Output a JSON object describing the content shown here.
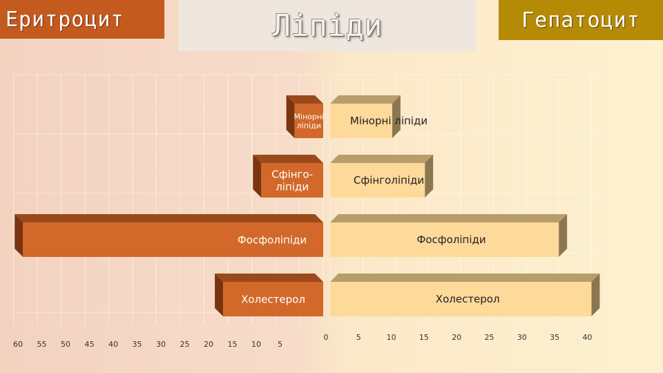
{
  "header": {
    "left_label": "Еритроцит",
    "title": "Ліпіди",
    "right_label": "Гепатоцит"
  },
  "colors": {
    "left_bar": "#d2692a",
    "left_bar_top": "#9a4a1a",
    "left_bar_side": "#7a3410",
    "right_bar": "#fdd99a",
    "right_bar_top": "#b79d6b",
    "right_bar_side": "#8a7650",
    "left_header": "#c55a1e",
    "right_header": "#b58a05"
  },
  "chart_data": [
    {
      "type": "bar",
      "orientation": "horizontal-reversed",
      "categories": [
        "Мінорні ліпіди",
        "Сфінго-ліпіди",
        "Фосфоліпіди",
        "Холестерол"
      ],
      "values": [
        6,
        13,
        63,
        21
      ],
      "xlim": [
        65,
        0
      ],
      "xticks": [
        "65",
        "60",
        "55",
        "50",
        "45",
        "40",
        "35",
        "30",
        "25",
        "20",
        "15",
        "10",
        "5"
      ],
      "grid": true
    },
    {
      "type": "bar",
      "orientation": "horizontal",
      "categories": [
        "Мінорні ліпіди",
        "Сфінголіпіди",
        "Фосфоліпіди",
        "Холестерол"
      ],
      "values": [
        9.5,
        14.5,
        35,
        40
      ],
      "xlim": [
        0,
        40
      ],
      "xticks": [
        "0",
        "5",
        "10",
        "15",
        "20",
        "25",
        "30",
        "35",
        "40"
      ],
      "grid": true
    }
  ]
}
